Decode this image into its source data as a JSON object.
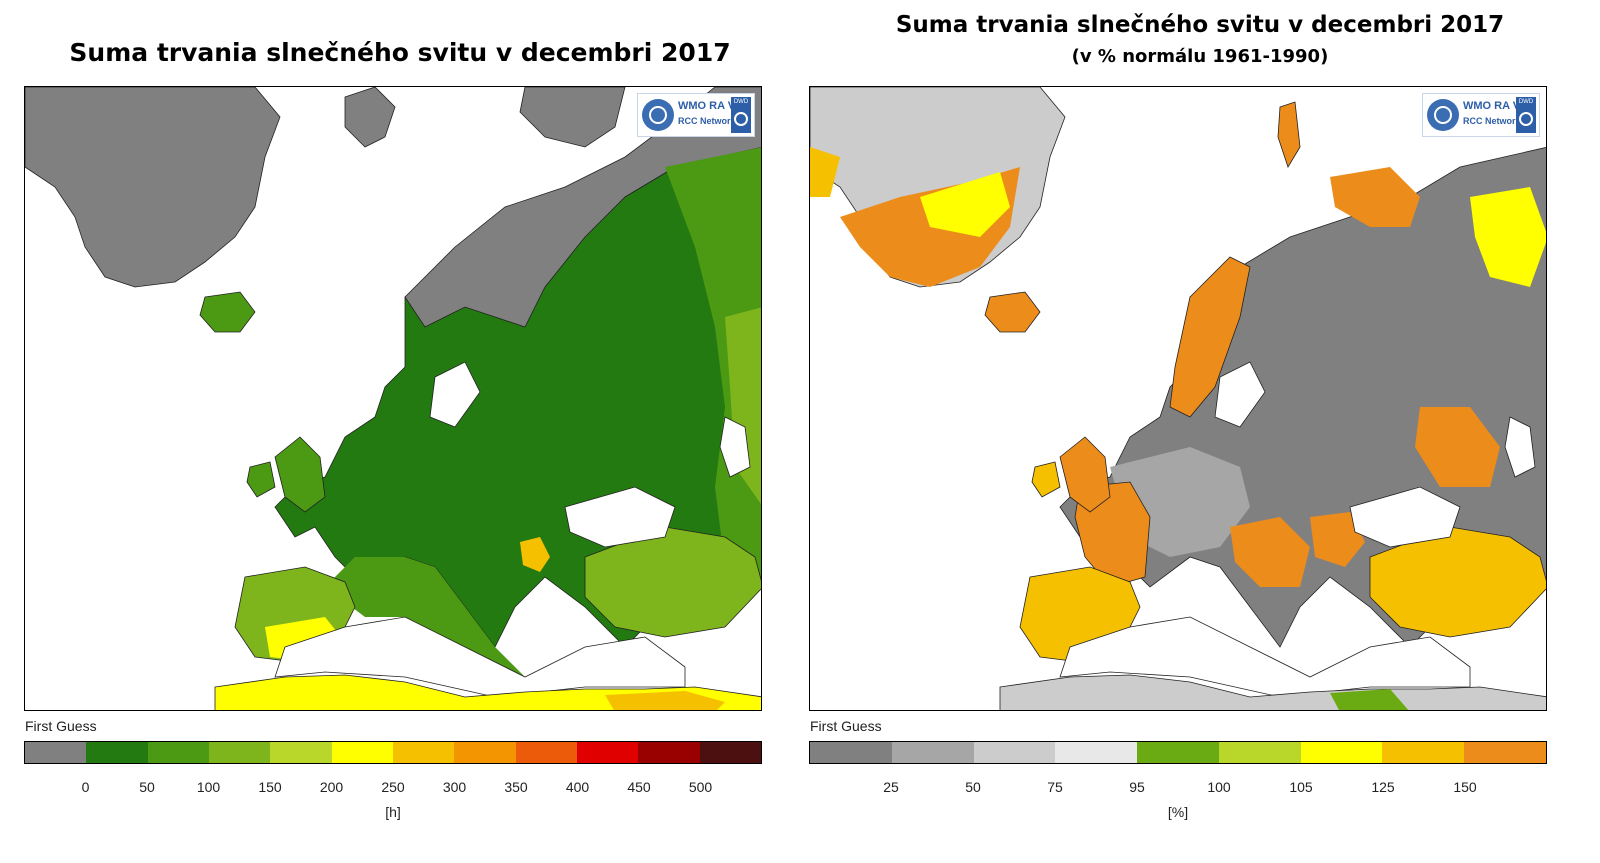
{
  "left_panel": {
    "title": "Suma trvania slnečného svitu v decembri 2017",
    "first_guess": "First Guess",
    "unit": "[h]",
    "logo": {
      "line1": "WMO RA VI",
      "line2": "RCC Network",
      "dwd": "DWD"
    },
    "legend": {
      "colors": [
        "#808080",
        "#227a10",
        "#4c9a14",
        "#7eb51c",
        "#b9d62a",
        "#ffff00",
        "#f5c000",
        "#f29500",
        "#ec5b0a",
        "#e00000",
        "#990000",
        "#4d1010"
      ],
      "ticks": [
        "0",
        "50",
        "100",
        "150",
        "200",
        "250",
        "300",
        "350",
        "400",
        "450",
        "500"
      ]
    }
  },
  "right_panel": {
    "title": "Suma trvania slnečného svitu v decembri 2017",
    "subtitle": "(v % normálu 1961-1990)",
    "first_guess": "First Guess",
    "unit": "[%]",
    "logo": {
      "line1": "WMO RA VI",
      "line2": "RCC Network",
      "dwd": "DWD"
    },
    "legend": {
      "colors": [
        "#808080",
        "#a6a6a6",
        "#cccccc",
        "#e8e8e8",
        "#6aab14",
        "#b9d62a",
        "#ffff00",
        "#f5c000",
        "#ec8c1a"
      ],
      "ticks": [
        "25",
        "50",
        "75",
        "95",
        "100",
        "105",
        "125",
        "150"
      ]
    }
  },
  "map_colors": {
    "sea": "#ffffff",
    "no_data": "#808080",
    "border": "#000000"
  }
}
